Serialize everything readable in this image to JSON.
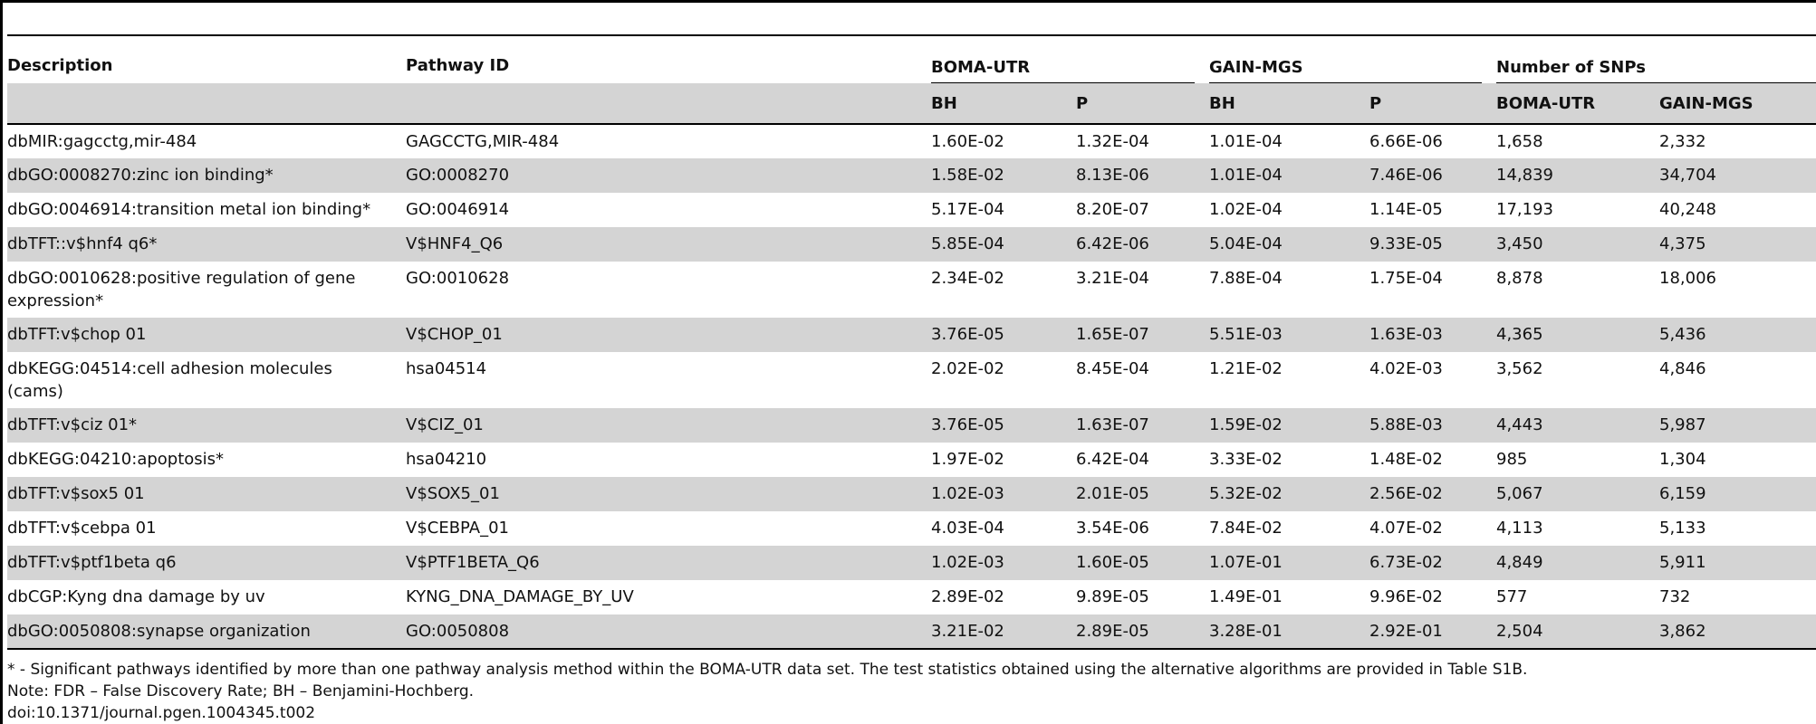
{
  "headers": {
    "description": "Description",
    "pathway_id": "Pathway ID",
    "boma_utr": "BOMA-UTR",
    "gain_mgs": "GAIN-MGS",
    "num_snps": "Number of SNPs",
    "bh": "BH",
    "p": "P",
    "snp_boma": "BOMA-UTR",
    "snp_gain": "GAIN-MGS"
  },
  "rows": [
    {
      "description": "dbMIR:gagcctg,mir-484",
      "pathway_id": "GAGCCTG,MIR-484",
      "boma_bh": "1.60E-02",
      "boma_p": "1.32E-04",
      "gain_bh": "1.01E-04",
      "gain_p": "6.66E-06",
      "snp_boma": "1,658",
      "snp_gain": "2,332"
    },
    {
      "description": "dbGO:0008270:zinc ion binding*",
      "pathway_id": "GO:0008270",
      "boma_bh": "1.58E-02",
      "boma_p": "8.13E-06",
      "gain_bh": "1.01E-04",
      "gain_p": "7.46E-06",
      "snp_boma": "14,839",
      "snp_gain": "34,704"
    },
    {
      "description": "dbGO:0046914:transition metal ion binding*",
      "pathway_id": "GO:0046914",
      "boma_bh": "5.17E-04",
      "boma_p": "8.20E-07",
      "gain_bh": "1.02E-04",
      "gain_p": "1.14E-05",
      "snp_boma": "17,193",
      "snp_gain": "40,248"
    },
    {
      "description": "dbTFT::v$hnf4 q6*",
      "pathway_id": "V$HNF4_Q6",
      "boma_bh": "5.85E-04",
      "boma_p": "6.42E-06",
      "gain_bh": "5.04E-04",
      "gain_p": "9.33E-05",
      "snp_boma": "3,450",
      "snp_gain": "4,375"
    },
    {
      "description": "dbGO:0010628:positive regulation of gene expression*",
      "pathway_id": "GO:0010628",
      "boma_bh": "2.34E-02",
      "boma_p": "3.21E-04",
      "gain_bh": "7.88E-04",
      "gain_p": "1.75E-04",
      "snp_boma": "8,878",
      "snp_gain": "18,006"
    },
    {
      "description": "dbTFT:v$chop 01",
      "pathway_id": "V$CHOP_01",
      "boma_bh": "3.76E-05",
      "boma_p": "1.65E-07",
      "gain_bh": "5.51E-03",
      "gain_p": "1.63E-03",
      "snp_boma": "4,365",
      "snp_gain": "5,436"
    },
    {
      "description": "dbKEGG:04514:cell adhesion molecules (cams)",
      "pathway_id": "hsa04514",
      "boma_bh": "2.02E-02",
      "boma_p": "8.45E-04",
      "gain_bh": "1.21E-02",
      "gain_p": "4.02E-03",
      "snp_boma": "3,562",
      "snp_gain": "4,846"
    },
    {
      "description": "dbTFT:v$ciz 01*",
      "pathway_id": "V$CIZ_01",
      "boma_bh": "3.76E-05",
      "boma_p": "1.63E-07",
      "gain_bh": "1.59E-02",
      "gain_p": "5.88E-03",
      "snp_boma": "4,443",
      "snp_gain": "5,987"
    },
    {
      "description": "dbKEGG:04210:apoptosis*",
      "pathway_id": "hsa04210",
      "boma_bh": "1.97E-02",
      "boma_p": "6.42E-04",
      "gain_bh": "3.33E-02",
      "gain_p": "1.48E-02",
      "snp_boma": "985",
      "snp_gain": "1,304"
    },
    {
      "description": "dbTFT:v$sox5 01",
      "pathway_id": "V$SOX5_01",
      "boma_bh": "1.02E-03",
      "boma_p": "2.01E-05",
      "gain_bh": "5.32E-02",
      "gain_p": "2.56E-02",
      "snp_boma": "5,067",
      "snp_gain": "6,159"
    },
    {
      "description": "dbTFT:v$cebpa 01",
      "pathway_id": "V$CEBPA_01",
      "boma_bh": "4.03E-04",
      "boma_p": "3.54E-06",
      "gain_bh": "7.84E-02",
      "gain_p": "4.07E-02",
      "snp_boma": "4,113",
      "snp_gain": "5,133"
    },
    {
      "description": "dbTFT:v$ptf1beta q6",
      "pathway_id": "V$PTF1BETA_Q6",
      "boma_bh": "1.02E-03",
      "boma_p": "1.60E-05",
      "gain_bh": "1.07E-01",
      "gain_p": "6.73E-02",
      "snp_boma": "4,849",
      "snp_gain": "5,911"
    },
    {
      "description": "dbCGP:Kyng dna damage by uv",
      "pathway_id": "KYNG_DNA_DAMAGE_BY_UV",
      "boma_bh": "2.89E-02",
      "boma_p": "9.89E-05",
      "gain_bh": "1.49E-01",
      "gain_p": "9.96E-02",
      "snp_boma": "577",
      "snp_gain": "732"
    },
    {
      "description": "dbGO:0050808:synapse organization",
      "pathway_id": "GO:0050808",
      "boma_bh": "3.21E-02",
      "boma_p": "2.89E-05",
      "gain_bh": "3.28E-01",
      "gain_p": "2.92E-01",
      "snp_boma": "2,504",
      "snp_gain": "3,862"
    }
  ],
  "notes": {
    "significance": "* - Significant pathways identified by more than one pathway analysis method within the BOMA-UTR data set. The test statistics obtained using the alternative algorithms are provided in Table S1B.",
    "abbreviations": "Note: FDR – False Discovery Rate; BH – Benjamini-Hochberg.",
    "doi": "doi:10.1371/journal.pgen.1004345.t002"
  }
}
